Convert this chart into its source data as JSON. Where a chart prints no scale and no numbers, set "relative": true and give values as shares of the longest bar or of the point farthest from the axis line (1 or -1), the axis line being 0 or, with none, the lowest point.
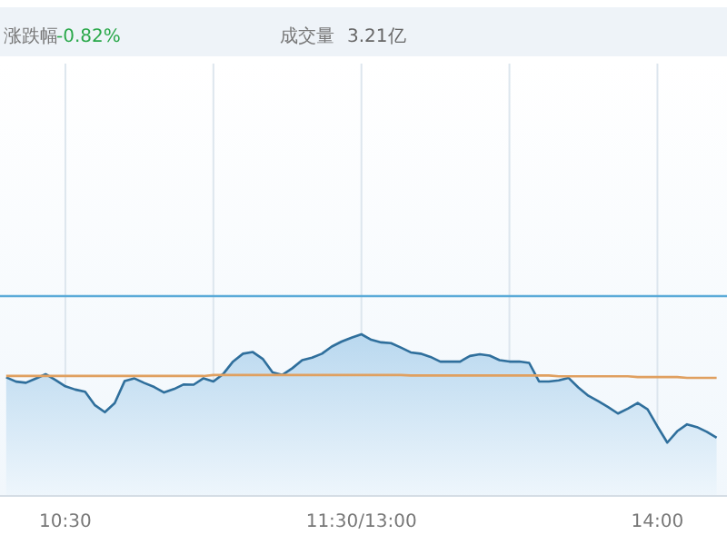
{
  "chart_data": {
    "type": "line",
    "relative": true,
    "annotations": [
      "涨跌幅",
      "-0.82%",
      "成交量",
      "3.21亿"
    ],
    "categories": [
      null,
      null,
      null,
      null,
      null,
      null,
      "10:30",
      null,
      null,
      null,
      null,
      null,
      null,
      null,
      null,
      null,
      null,
      null,
      null,
      null,
      null,
      null,
      null,
      null,
      null,
      null,
      null,
      null,
      null,
      null,
      null,
      null,
      null,
      null,
      null,
      null,
      "11:30/13:00",
      null,
      null,
      null,
      null,
      null,
      null,
      null,
      null,
      null,
      null,
      null,
      null,
      null,
      null,
      null,
      null,
      null,
      null,
      null,
      null,
      null,
      null,
      null,
      null,
      null,
      null,
      null,
      null,
      null,
      "14:00",
      null,
      null,
      null,
      null,
      null,
      null
    ],
    "grid": "x",
    "ref_lines": [
      {
        "axis": "y",
        "value": 1.236,
        "color": "#5aaad8"
      }
    ],
    "series": [
      {
        "type": "area",
        "color": "#2f6f9c",
        "values": [
          0.734,
          0.707,
          0.7,
          0.726,
          0.753,
          0.717,
          0.678,
          0.658,
          0.645,
          0.561,
          0.518,
          0.574,
          0.71,
          0.727,
          0.699,
          0.674,
          0.64,
          0.661,
          0.69,
          0.688,
          0.728,
          0.708,
          0.755,
          0.832,
          0.88,
          0.89,
          0.848,
          0.764,
          0.749,
          0.79,
          0.84,
          0.855,
          0.88,
          0.924,
          0.955,
          0.979,
          1.0,
          0.966,
          0.95,
          0.945,
          0.918,
          0.888,
          0.88,
          0.86,
          0.831,
          0.831,
          0.831,
          0.866,
          0.876,
          0.868,
          0.84,
          0.831,
          0.831,
          0.823,
          0.708,
          0.708,
          0.715,
          0.73,
          0.67,
          0.62,
          0.586,
          0.55,
          0.51,
          0.54,
          0.575,
          0.536,
          0.43,
          0.33,
          0.4,
          0.443,
          0.426,
          0.397,
          0.36
        ]
      },
      {
        "color": "#e0a060",
        "values": [
          0.742,
          0.742,
          0.742,
          0.742,
          0.742,
          0.742,
          0.742,
          0.742,
          0.742,
          0.742,
          0.742,
          0.742,
          0.742,
          0.742,
          0.742,
          0.742,
          0.742,
          0.742,
          0.742,
          0.742,
          0.742,
          0.748,
          0.748,
          0.748,
          0.748,
          0.748,
          0.748,
          0.748,
          0.748,
          0.748,
          0.748,
          0.748,
          0.748,
          0.748,
          0.748,
          0.748,
          0.748,
          0.748,
          0.748,
          0.748,
          0.748,
          0.745,
          0.745,
          0.745,
          0.745,
          0.745,
          0.745,
          0.745,
          0.745,
          0.745,
          0.745,
          0.745,
          0.745,
          0.745,
          0.745,
          0.745,
          0.74,
          0.74,
          0.74,
          0.74,
          0.74,
          0.74,
          0.74,
          0.74,
          0.735,
          0.735,
          0.735,
          0.735,
          0.735,
          0.73,
          0.73,
          0.73,
          0.73
        ]
      }
    ]
  }
}
